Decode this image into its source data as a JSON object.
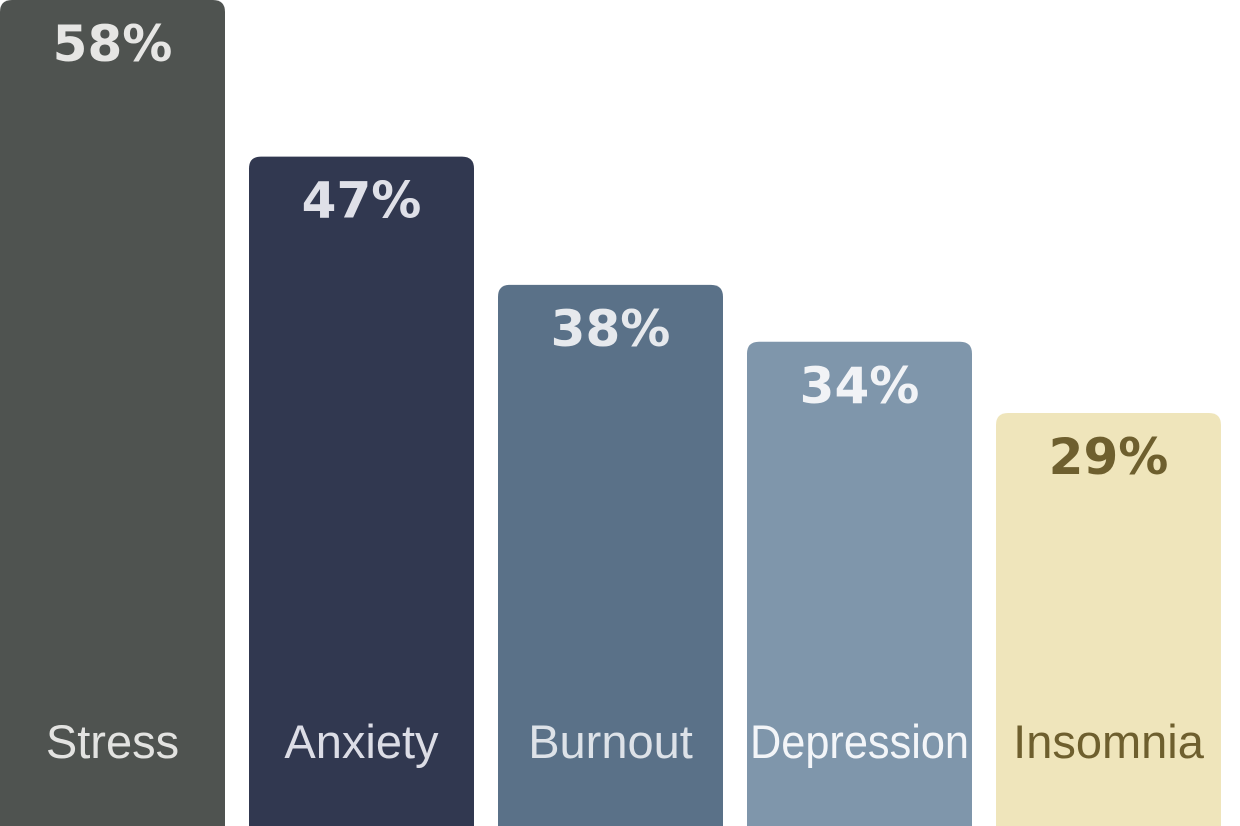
{
  "chart_data": {
    "type": "bar",
    "categories": [
      "Stress",
      "Anxiety",
      "Burnout",
      "Depression",
      "Insomnia"
    ],
    "values": [
      58,
      47,
      38,
      34,
      29
    ],
    "value_labels": [
      "58%",
      "47%",
      "38%",
      "34%",
      "29%"
    ],
    "unit": "%",
    "ylim": [
      0,
      58
    ],
    "grid": false,
    "legend": "none",
    "title": "",
    "xlabel": "",
    "ylabel": "",
    "colors": {
      "bars": [
        "#4f5350",
        "#313850",
        "#5a7188",
        "#7f96ab",
        "#efe5bb"
      ],
      "value_labels": [
        "#e6e6e4",
        "#dfe0e8",
        "#e6e9ed",
        "#f1f3f6",
        "#6e5f2e"
      ],
      "category_labels": [
        "#e3e3e1",
        "#dcdde6",
        "#dde2e8",
        "#f3f5f8",
        "#6e5f2e"
      ]
    }
  }
}
